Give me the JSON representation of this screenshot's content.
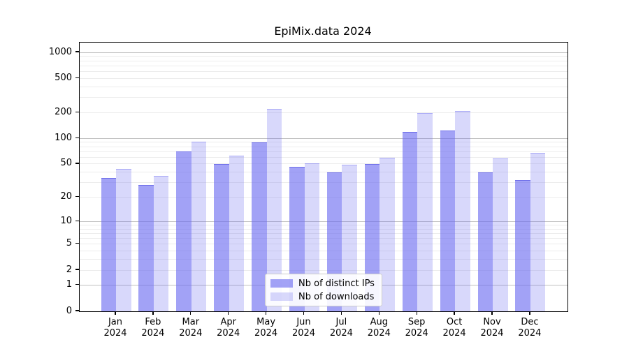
{
  "title": "EpiMix.data 2024",
  "legend": {
    "items": [
      {
        "label": "Nb of distinct IPs",
        "swatch": "bar_dark"
      },
      {
        "label": "Nb of downloads",
        "swatch": "bar_light"
      }
    ],
    "position": "lower center"
  },
  "colors": {
    "bar_dark": "rgba(105,105,240,0.62)",
    "bar_dark_edge": "rgba(95,95,230,0.75)",
    "bar_light": "rgba(105,105,240,0.26)",
    "bar_light_edge": "rgba(105,105,240,0.40)",
    "grid_major": "#bfbfbf",
    "grid_minor": "#ececec",
    "spine": "#000000"
  },
  "chart_data": {
    "type": "bar",
    "title": "EpiMix.data 2024",
    "categories": [
      "Jan",
      "Feb",
      "Mar",
      "Apr",
      "May",
      "Jun",
      "Jul",
      "Aug",
      "Sep",
      "Oct",
      "Nov",
      "Dec"
    ],
    "category_year": "2024",
    "series": [
      {
        "name": "Nb of distinct IPs",
        "values": [
          34,
          28,
          70,
          50,
          90,
          46,
          40,
          50,
          120,
          123,
          40,
          32
        ]
      },
      {
        "name": "Nb of downloads",
        "values": [
          44,
          36,
          91,
          63,
          220,
          51,
          49,
          59,
          198,
          210,
          58,
          67
        ]
      }
    ],
    "xlabel": "",
    "ylabel": "",
    "y_scale": "log1p",
    "y_ticks": [
      0,
      1,
      2,
      5,
      10,
      20,
      50,
      100,
      200,
      500,
      1000
    ],
    "y_major_gridlines": [
      1,
      10,
      100,
      1000
    ],
    "ylim": [
      0,
      1300
    ],
    "grid": true,
    "legend_position": "lower center"
  }
}
